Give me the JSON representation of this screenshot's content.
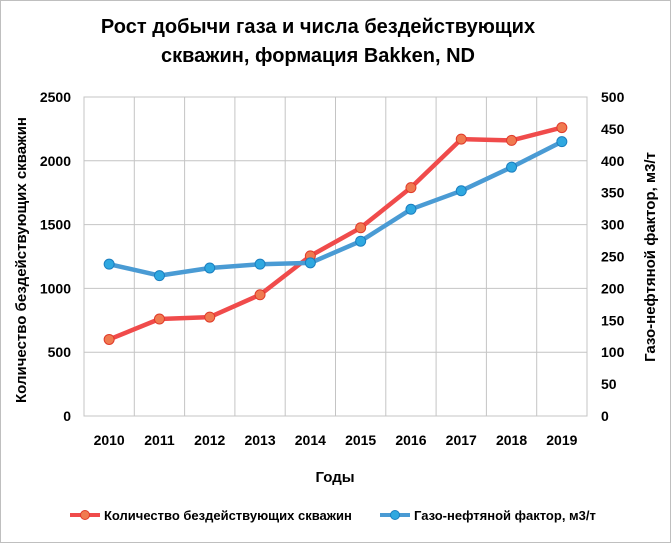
{
  "chart_data": {
    "type": "line",
    "title_lines": [
      "Рост добычи газа и числа бездействующих",
      "скважин, формация Bakken, ND"
    ],
    "xlabel": "Годы",
    "ylabel": "Количество бездействующих скважин",
    "y2label": "Газо-нефтяной фактор, м3/т",
    "categories": [
      "2010",
      "2011",
      "2012",
      "2013",
      "2014",
      "2015",
      "2016",
      "2017",
      "2018",
      "2019"
    ],
    "ylim": [
      0,
      2500
    ],
    "yticks": [
      0,
      500,
      1000,
      1500,
      2000,
      2500
    ],
    "y2lim": [
      0,
      500
    ],
    "y2ticks": [
      0,
      50,
      100,
      150,
      200,
      250,
      300,
      350,
      400,
      450,
      500
    ],
    "grid": true,
    "legend_position": "bottom",
    "series": [
      {
        "name": "Количество бездействующих скважин",
        "axis": "left",
        "color": "#f04b4b",
        "marker_fill": "#f07a50",
        "marker_stroke": "#e03a2a",
        "values": [
          600,
          760,
          775,
          950,
          1255,
          1475,
          1790,
          2170,
          2160,
          2260
        ]
      },
      {
        "name": "Газо-нефтяной фактор, м3/т",
        "axis": "right",
        "color": "#4a9bd4",
        "marker_fill": "#2fa8e0",
        "marker_stroke": "#1b7fc0",
        "values": [
          238,
          220,
          232,
          238,
          240,
          274,
          324,
          353,
          390,
          430
        ]
      }
    ]
  }
}
